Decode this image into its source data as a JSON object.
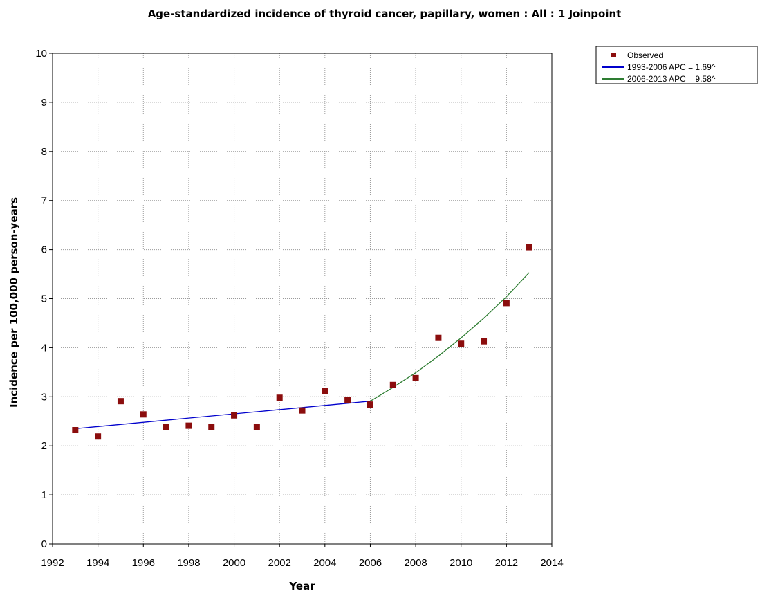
{
  "chart_data": {
    "type": "scatter",
    "title": "Age-standardized incidence of thyroid cancer, papillary, women : All : 1 Joinpoint",
    "xlabel": "Year",
    "ylabel": "Incidence per 100,000 person-years",
    "xlim": [
      1992,
      2014
    ],
    "ylim": [
      0,
      10
    ],
    "x_ticks": [
      1992,
      1994,
      1996,
      1998,
      2000,
      2002,
      2004,
      2006,
      2008,
      2010,
      2012,
      2014
    ],
    "y_ticks": [
      0,
      1,
      2,
      3,
      4,
      5,
      6,
      7,
      8,
      9,
      10
    ],
    "grid": true,
    "legend_position": "top-right",
    "series": [
      {
        "name": "Observed",
        "kind": "scatter",
        "color": "#8b0d0d",
        "x": [
          1993,
          1994,
          1995,
          1996,
          1997,
          1998,
          1999,
          2000,
          2001,
          2002,
          2003,
          2004,
          2005,
          2006,
          2007,
          2008,
          2009,
          2010,
          2011,
          2012,
          2013
        ],
        "y": [
          2.32,
          2.19,
          2.91,
          2.64,
          2.38,
          2.41,
          2.39,
          2.62,
          2.38,
          2.98,
          2.72,
          3.11,
          2.93,
          2.84,
          3.24,
          3.38,
          4.2,
          4.08,
          4.13,
          4.91,
          6.05
        ]
      },
      {
        "name": "1993-2006 APC  = 1.69^",
        "kind": "line",
        "color": "#0000cc",
        "x": [
          1993,
          2006
        ],
        "y": [
          2.35,
          2.91
        ]
      },
      {
        "name": "2006-2013 APC  = 9.58^",
        "kind": "line",
        "color": "#2e7d32",
        "x": [
          2006,
          2007,
          2008,
          2009,
          2010,
          2011,
          2012,
          2013
        ],
        "y": [
          2.91,
          3.19,
          3.49,
          3.83,
          4.2,
          4.6,
          5.04,
          5.53
        ]
      }
    ]
  }
}
